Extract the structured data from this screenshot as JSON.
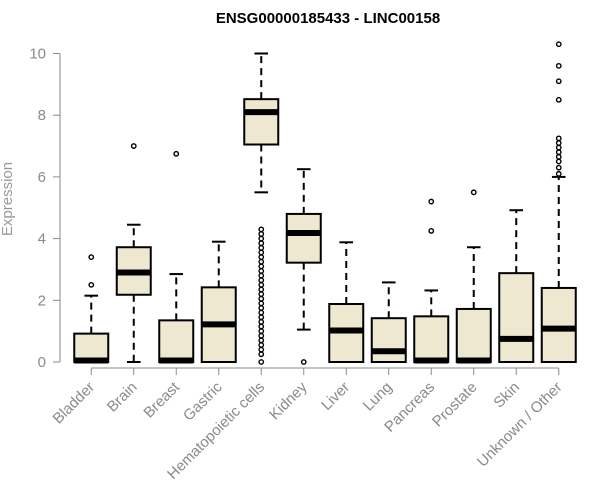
{
  "chart_data": {
    "type": "boxplot",
    "title": "ENSG00000185433 - LINC00158",
    "xlabel": "",
    "ylabel": "Expression",
    "ylim": [
      0,
      10.6
    ],
    "yticks": [
      0,
      2,
      4,
      6,
      8,
      10
    ],
    "grid": false,
    "legend": "none",
    "colors": {
      "box_fill": "#efe8d0",
      "box_stroke": "#000000",
      "axis": "#8a8a8a"
    },
    "categories": [
      "Bladder",
      "Brain",
      "Breast",
      "Gastric",
      "Hematopoietic cells",
      "Kidney",
      "Liver",
      "Lung",
      "Pancreas",
      "Prostate",
      "Skin",
      "Unknown / Other"
    ],
    "boxes": [
      {
        "category": "Bladder",
        "lower_whisker": 0,
        "q1": 0,
        "median": 0.05,
        "q3": 0.92,
        "upper_whisker": 2.15,
        "outliers": [
          2.5,
          3.4
        ]
      },
      {
        "category": "Brain",
        "lower_whisker": 0,
        "q1": 2.18,
        "median": 2.9,
        "q3": 3.72,
        "upper_whisker": 4.45,
        "outliers": [
          7.0
        ]
      },
      {
        "category": "Breast",
        "lower_whisker": 0,
        "q1": 0,
        "median": 0.05,
        "q3": 1.35,
        "upper_whisker": 2.85,
        "outliers": [
          6.75
        ]
      },
      {
        "category": "Gastric",
        "lower_whisker": 0,
        "q1": 0,
        "median": 1.22,
        "q3": 2.42,
        "upper_whisker": 3.9,
        "outliers": []
      },
      {
        "category": "Hematopoietic cells",
        "lower_whisker": 5.5,
        "q1": 7.05,
        "median": 8.1,
        "q3": 8.52,
        "upper_whisker": 10.0,
        "outliers": [
          0.0,
          0.25,
          0.4,
          0.55,
          0.7,
          0.85,
          1.0,
          1.15,
          1.3,
          1.45,
          1.6,
          1.75,
          1.9,
          2.05,
          2.2,
          2.35,
          2.5,
          2.65,
          2.8,
          2.95,
          3.1,
          3.25,
          3.4,
          3.55,
          3.7,
          3.85,
          4.0,
          4.15,
          4.3
        ]
      },
      {
        "category": "Kidney",
        "lower_whisker": 1.05,
        "q1": 3.22,
        "median": 4.18,
        "q3": 4.8,
        "upper_whisker": 6.25,
        "outliers": [
          0.0
        ]
      },
      {
        "category": "Liver",
        "lower_whisker": 0,
        "q1": 0,
        "median": 1.02,
        "q3": 1.88,
        "upper_whisker": 3.88,
        "outliers": []
      },
      {
        "category": "Lung",
        "lower_whisker": 0,
        "q1": 0,
        "median": 0.35,
        "q3": 1.42,
        "upper_whisker": 2.58,
        "outliers": []
      },
      {
        "category": "Pancreas",
        "lower_whisker": 0,
        "q1": 0,
        "median": 0.05,
        "q3": 1.48,
        "upper_whisker": 2.32,
        "outliers": [
          4.25,
          5.2
        ]
      },
      {
        "category": "Prostate",
        "lower_whisker": 0,
        "q1": 0,
        "median": 0.05,
        "q3": 1.72,
        "upper_whisker": 3.72,
        "outliers": [
          5.5
        ]
      },
      {
        "category": "Skin",
        "lower_whisker": 0,
        "q1": 0,
        "median": 0.75,
        "q3": 2.88,
        "upper_whisker": 4.92,
        "outliers": []
      },
      {
        "category": "Unknown / Other",
        "lower_whisker": 0,
        "q1": 0,
        "median": 1.08,
        "q3": 2.4,
        "upper_whisker": 6.0,
        "outliers": [
          6.1,
          6.3,
          6.5,
          6.65,
          6.8,
          6.95,
          7.1,
          7.25,
          8.5,
          9.1,
          9.6,
          10.3
        ]
      }
    ]
  }
}
